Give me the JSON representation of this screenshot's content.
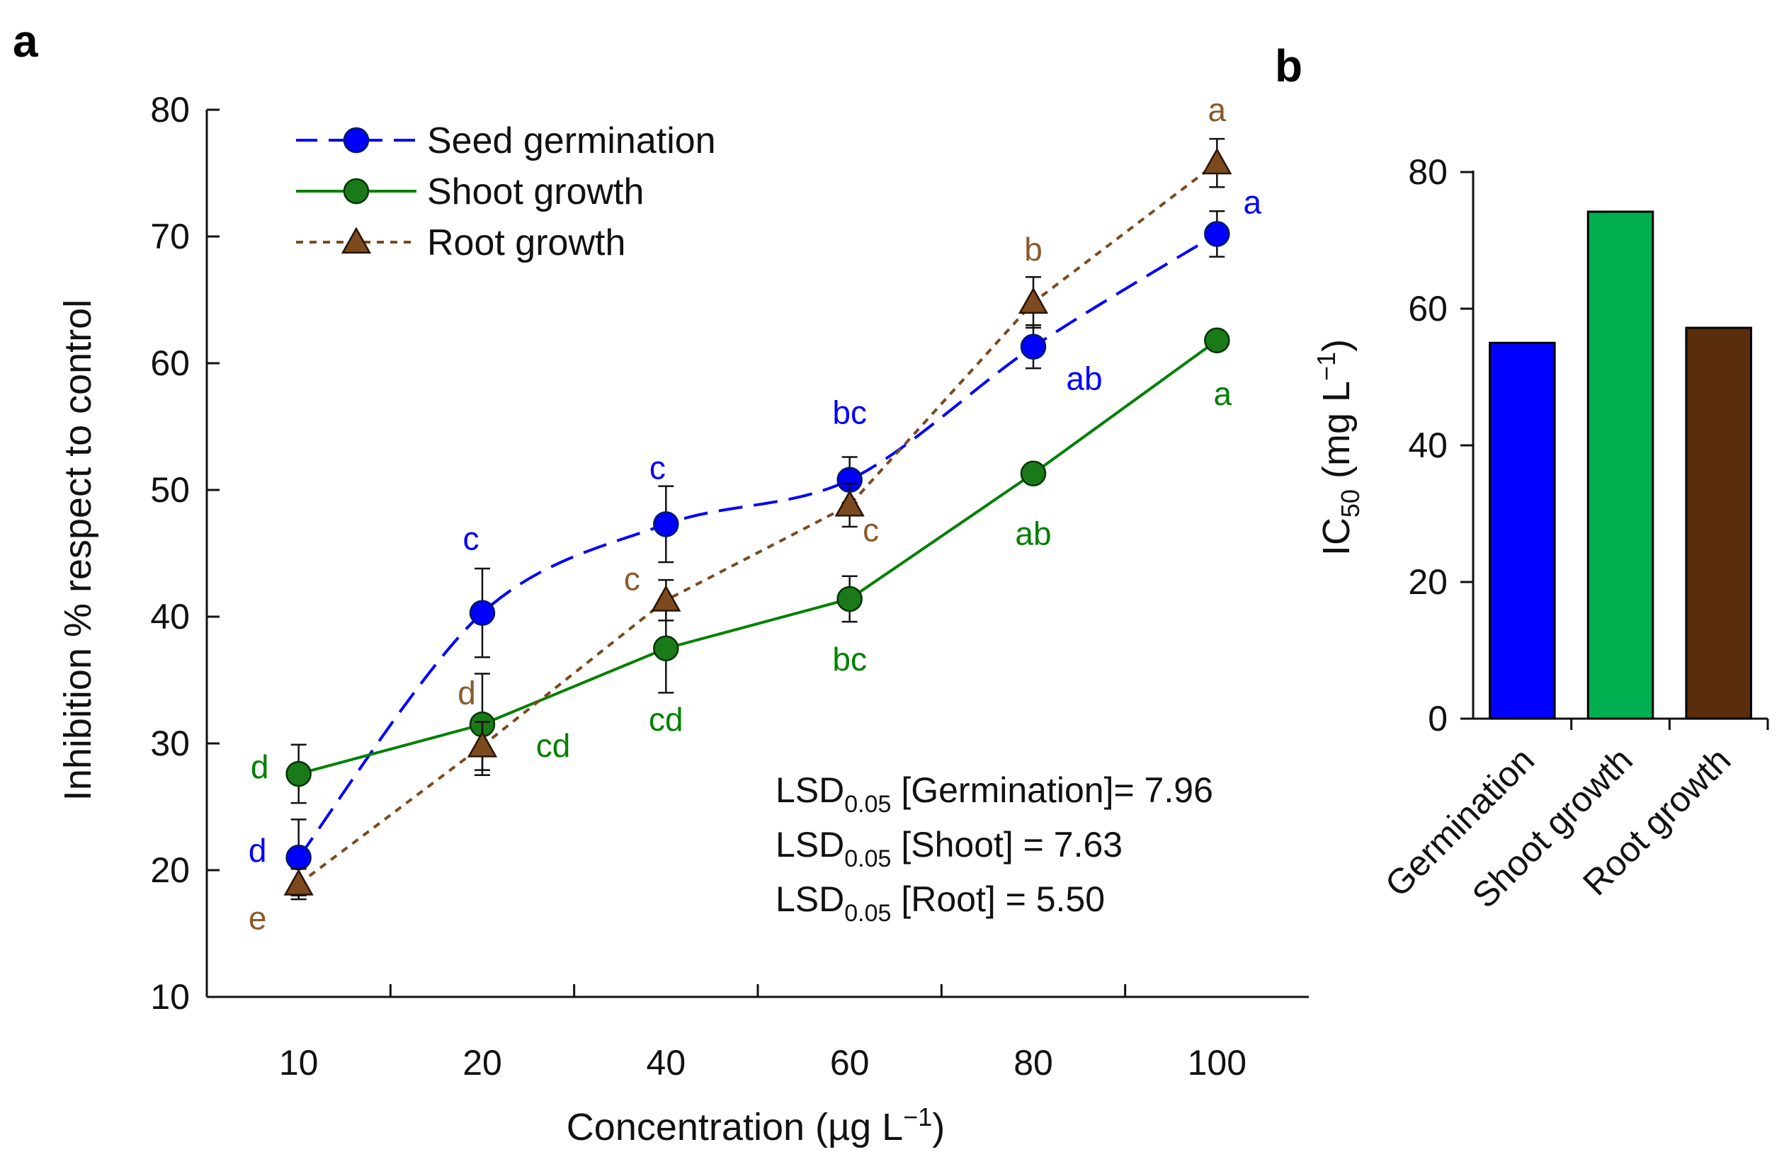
{
  "chart_data": [
    {
      "panel": "a",
      "type": "line",
      "categories": [
        "10",
        "20",
        "40",
        "60",
        "80",
        "100"
      ],
      "xlabel_main": "Concentration (µg L",
      "xlabel_sup": "−1",
      "xlabel_tail": ")",
      "ylabel": "Inhibition % respect to control",
      "ylim": [
        10,
        80
      ],
      "yticks": [
        "10",
        "20",
        "30",
        "40",
        "50",
        "60",
        "70",
        "80"
      ],
      "series": [
        {
          "name": "Seed germination",
          "color": "#0000ff",
          "marker": "circle",
          "line_style": "dashed",
          "values": [
            21,
            40.3,
            47.3,
            50.8,
            61.3,
            70.2
          ],
          "errors": [
            3,
            3.5,
            3,
            1.8,
            1.7,
            1.8
          ],
          "letters": [
            "d",
            "c",
            "c",
            "bc",
            "ab",
            "a"
          ]
        },
        {
          "name": "Shoot growth",
          "color": "#008000",
          "marker": "circle",
          "line_style": "solid",
          "values": [
            27.6,
            31.5,
            37.5,
            41.4,
            51.3,
            61.8
          ],
          "errors": [
            2.3,
            4,
            3.5,
            1.8,
            0,
            0
          ],
          "letters": [
            "d",
            "cd",
            "cd",
            "bc",
            "ab",
            "a"
          ]
        },
        {
          "name": "Root growth",
          "color": "#7b4a1e",
          "marker": "triangle",
          "line_style": "dotted",
          "values": [
            18.9,
            29.8,
            41.3,
            48.8,
            64.8,
            75.8
          ],
          "errors": [
            1.2,
            1.9,
            1.6,
            1.7,
            2,
            1.9
          ],
          "letters": [
            "e",
            "d",
            "c",
            "c",
            "b",
            "a"
          ]
        }
      ],
      "annotations": [
        {
          "main": "LSD",
          "sub": "0.05",
          "tail": " [Germination]= 7.96"
        },
        {
          "main": "LSD",
          "sub": "0.05",
          "tail": " [Shoot] = 7.63"
        },
        {
          "main": "LSD",
          "sub": "0.05",
          "tail": " [Root] = 5.50"
        }
      ]
    },
    {
      "panel": "b",
      "type": "bar",
      "categories": [
        "Germination",
        "Shoot growth",
        "Root growth"
      ],
      "values": [
        55,
        74.2,
        57.2
      ],
      "colors": [
        "#0000ff",
        "#00b050",
        "#5a2d0c"
      ],
      "ylabel_main": "IC",
      "ylabel_sub": "50",
      "ylabel_mid": " (mg L",
      "ylabel_sup": "−1",
      "ylabel_tail": ")",
      "ylim": [
        0,
        80
      ],
      "yticks": [
        "0",
        "20",
        "40",
        "60",
        "80"
      ]
    }
  ]
}
